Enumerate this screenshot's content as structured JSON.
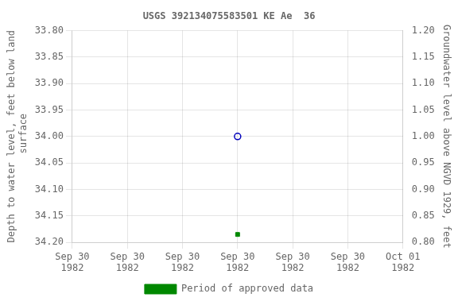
{
  "chart_data": {
    "type": "scatter",
    "title": "USGS 392134075583501 KE Ae  36",
    "y_label": "Depth to water level, feet below land\n surface",
    "y2_label": "Groundwater level above NGVD 1929, feet",
    "xlim": [
      -1.5,
      1.5
    ],
    "xticks": [
      {
        "value": -1.5,
        "label": "Sep 30\n1982"
      },
      {
        "value": -1.0,
        "label": "Sep 30\n1982"
      },
      {
        "value": -0.5,
        "label": "Sep 30\n1982"
      },
      {
        "value": 0.0,
        "label": "Sep 30\n1982"
      },
      {
        "value": 0.5,
        "label": "Sep 30\n1982"
      },
      {
        "value": 1.0,
        "label": "Sep 30\n1982"
      },
      {
        "value": 1.5,
        "label": "Oct 01\n1982"
      }
    ],
    "ylim": [
      34.2,
      33.8
    ],
    "yticks": [
      {
        "value": 33.8,
        "label": "33.80"
      },
      {
        "value": 33.85,
        "label": "33.85"
      },
      {
        "value": 33.9,
        "label": "33.90"
      },
      {
        "value": 33.95,
        "label": "33.95"
      },
      {
        "value": 34.0,
        "label": "34.00"
      },
      {
        "value": 34.05,
        "label": "34.05"
      },
      {
        "value": 34.1,
        "label": "34.10"
      },
      {
        "value": 34.15,
        "label": "34.15"
      },
      {
        "value": 34.2,
        "label": "34.20"
      }
    ],
    "y2lim": [
      0.8,
      1.2
    ],
    "y2ticks": [
      {
        "value": 0.8,
        "label": "0.80"
      },
      {
        "value": 0.85,
        "label": "0.85"
      },
      {
        "value": 0.9,
        "label": "0.90"
      },
      {
        "value": 0.95,
        "label": "0.95"
      },
      {
        "value": 1.0,
        "label": "1.00"
      },
      {
        "value": 1.05,
        "label": "1.05"
      },
      {
        "value": 1.1,
        "label": "1.10"
      },
      {
        "value": 1.15,
        "label": "1.15"
      },
      {
        "value": 1.2,
        "label": "1.20"
      }
    ],
    "grid": true,
    "legend": "bottom",
    "series": [
      {
        "color": "#0000bb",
        "marker": "open_circle",
        "x": [
          0.0
        ],
        "values": [
          34.0
        ]
      },
      {
        "name": "Period of approved data",
        "color": "#008800",
        "marker": "square",
        "x": [
          0.0
        ],
        "values": [
          34.185
        ]
      }
    ]
  }
}
